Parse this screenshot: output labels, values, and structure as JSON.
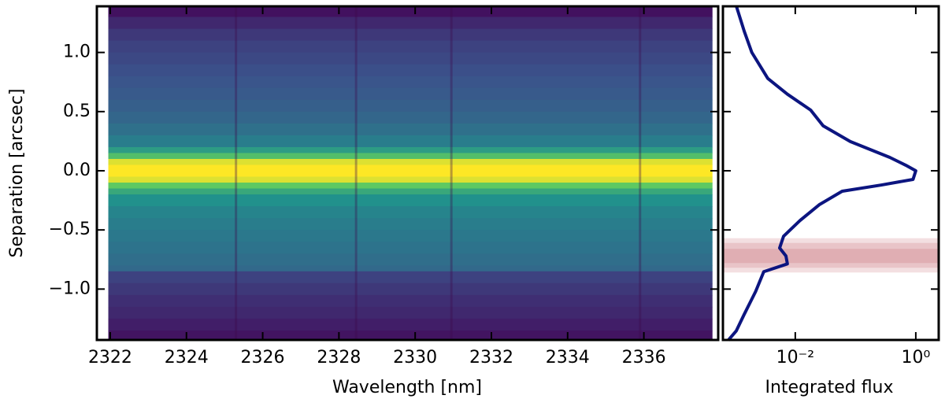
{
  "chart_data": [
    {
      "type": "heatmap",
      "xlabel": "Wavelength [nm]",
      "ylabel": "Separation [arcsec]",
      "colormap": "viridis",
      "xlim": [
        2321.65,
        2337.95
      ],
      "ylim": [
        -1.43,
        1.39
      ],
      "x_extent": [
        2321.95,
        2337.8
      ],
      "xticks": [
        2322,
        2324,
        2326,
        2328,
        2330,
        2332,
        2334,
        2336
      ],
      "yticks": [
        {
          "value": -1.0,
          "label": "−1.0"
        },
        {
          "value": -0.5,
          "label": "−0.5"
        },
        {
          "value": 0.0,
          "label": "0.0"
        },
        0.5,
        {
          "value": 1.0,
          "label": "1.0"
        }
      ],
      "y_edges": [
        1.39,
        1.3,
        1.2,
        1.1,
        1.0,
        0.9,
        0.8,
        0.7,
        0.6,
        0.5,
        0.4,
        0.3,
        0.2,
        0.15,
        0.1,
        0.05,
        -0.05,
        -0.1,
        -0.15,
        -0.2,
        -0.3,
        -0.4,
        -0.5,
        -0.6,
        -0.7,
        -0.8,
        -0.85,
        -0.95,
        -1.05,
        -1.15,
        -1.25,
        -1.35,
        -1.43
      ],
      "values": [
        0.05,
        0.12,
        0.17,
        0.2,
        0.22,
        0.24,
        0.26,
        0.28,
        0.3,
        0.33,
        0.37,
        0.42,
        0.55,
        0.7,
        0.95,
        1,
        0.95,
        0.75,
        0.6,
        0.5,
        0.45,
        0.42,
        0.4,
        0.38,
        0.36,
        0.34,
        0.2,
        0.17,
        0.14,
        0.12,
        0.09,
        0.06
      ],
      "dark_columns": [
        2325.3,
        2328.45,
        2330.95,
        2335.9
      ]
    },
    {
      "type": "line",
      "xlabel": "Integrated flux",
      "xscale": "log",
      "xlim": [
        0.00063,
        2.4
      ],
      "ylim": [
        -1.43,
        1.39
      ],
      "xticks": [
        {
          "value": 0.01,
          "label": "10⁻²"
        },
        {
          "value": 1,
          "label": "10⁰"
        }
      ],
      "yticks": [
        -1.0,
        -0.5,
        0.0,
        0.5,
        1.0
      ],
      "color": "#0c1580",
      "y": [
        1.393,
        1.18,
        1.0,
        0.78,
        0.647,
        0.513,
        0.38,
        0.247,
        0.113,
        0.047,
        0,
        -0.073,
        -0.12,
        -0.173,
        -0.287,
        -0.42,
        -0.553,
        -0.653,
        -0.72,
        -0.787,
        -0.853,
        -1.02,
        -1.22,
        -1.353,
        -1.433
      ],
      "values": [
        0.00105,
        0.00142,
        0.0019,
        0.0035,
        0.0074,
        0.018,
        0.029,
        0.082,
        0.37,
        0.68,
        1.0,
        0.9,
        0.27,
        0.06,
        0.025,
        0.012,
        0.0064,
        0.0055,
        0.007,
        0.0074,
        0.003,
        0.0022,
        0.0014,
        0.00105,
        0.00077
      ],
      "band_color": "#b5404e",
      "bands": [
        [
          -0.86,
          -0.57
        ],
        [
          -0.82,
          -0.61
        ],
        [
          -0.78,
          -0.66
        ]
      ]
    }
  ]
}
